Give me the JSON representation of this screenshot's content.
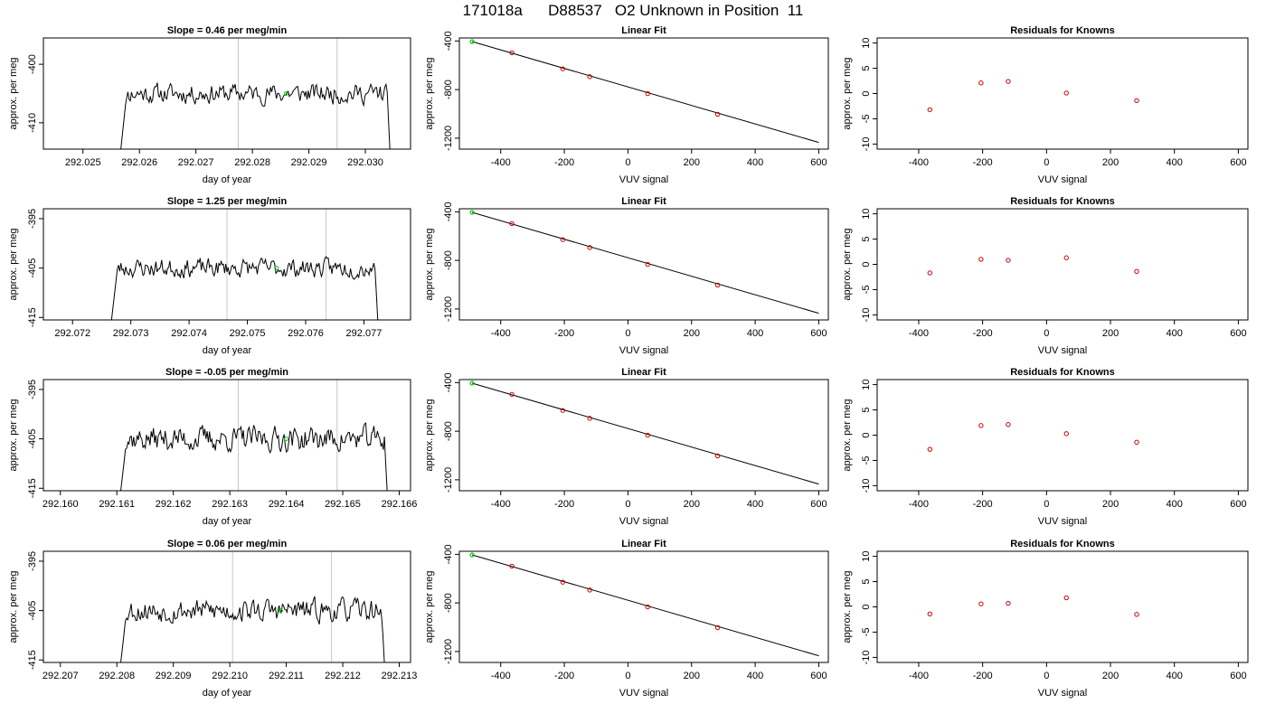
{
  "title": "171018a      D88537   O2 Unknown in Position  11",
  "colors": {
    "trace": "#000000",
    "unknown_point": "#00cc00",
    "known_point": "#cc0000",
    "vline": "#c8c8c8"
  },
  "chart_data": [
    {
      "type": "line",
      "panel": "timeseries",
      "row": 1,
      "title": "Slope =  0.46  per meg/min",
      "xlabel": "day of year",
      "ylabel": "approx. per meg",
      "xlim": [
        292.0243,
        292.0308
      ],
      "ylim": [
        -414.5,
        -395.5
      ],
      "xticks": [
        292.025,
        292.026,
        292.027,
        292.028,
        292.029,
        292.03
      ],
      "xtick_labels": [
        "292.025",
        "292.026",
        "292.027",
        "292.028",
        "292.029",
        "292.030"
      ],
      "yticks": [
        -400,
        -410
      ],
      "ytick_labels": [
        "-400",
        "-410"
      ],
      "trace_start": 292.02565,
      "trace_end": 292.03045,
      "trace_level": -405.0,
      "trace_noise": 1.6,
      "trace_seed": 11,
      "vlines": [
        292.02775,
        292.0295
      ],
      "unknown_point": {
        "x": 292.0286,
        "y": -405.0
      }
    },
    {
      "type": "line",
      "panel": "timeseries",
      "row": 2,
      "title": "Slope =  1.25  per meg/min",
      "xlabel": "day of year",
      "ylabel": "approx. per meg",
      "xlim": [
        292.0715,
        292.0778
      ],
      "ylim": [
        -415.5,
        -393
      ],
      "xticks": [
        292.072,
        292.073,
        292.074,
        292.075,
        292.076,
        292.077
      ],
      "xtick_labels": [
        "292.072",
        "292.073",
        "292.074",
        "292.075",
        "292.076",
        "292.077"
      ],
      "yticks": [
        -395,
        -405,
        -415
      ],
      "ytick_labels": [
        "-395",
        "-405",
        "-415"
      ],
      "trace_start": 292.07265,
      "trace_end": 292.07725,
      "trace_level": -405.0,
      "trace_noise": 1.8,
      "trace_seed": 23,
      "vlines": [
        292.07465,
        292.07635
      ],
      "unknown_point": {
        "x": 292.0755,
        "y": -405.0
      }
    },
    {
      "type": "line",
      "panel": "timeseries",
      "row": 3,
      "title": "Slope =  -0.05  per meg/min",
      "xlabel": "day of year",
      "ylabel": "approx. per meg",
      "xlim": [
        292.1597,
        292.1662
      ],
      "ylim": [
        -415.5,
        -393
      ],
      "xticks": [
        292.16,
        292.161,
        292.162,
        292.163,
        292.164,
        292.165,
        292.166
      ],
      "xtick_labels": [
        "292.160",
        "292.161",
        "292.162",
        "292.163",
        "292.164",
        "292.165",
        "292.166"
      ],
      "yticks": [
        -395,
        -405,
        -415
      ],
      "ytick_labels": [
        "-395",
        "-405",
        "-415"
      ],
      "trace_start": 292.16105,
      "trace_end": 292.1658,
      "trace_level": -405.0,
      "trace_noise": 2.4,
      "trace_seed": 37,
      "vlines": [
        292.16315,
        292.1649
      ],
      "unknown_point": {
        "x": 292.164,
        "y": -405.0
      }
    },
    {
      "type": "line",
      "panel": "timeseries",
      "row": 4,
      "title": "Slope =  0.06  per meg/min",
      "xlabel": "day of year",
      "ylabel": "approx. per meg",
      "xlim": [
        292.2067,
        292.2132
      ],
      "ylim": [
        -415.5,
        -393
      ],
      "xticks": [
        292.207,
        292.208,
        292.209,
        292.21,
        292.211,
        292.212,
        292.213
      ],
      "xtick_labels": [
        "292.207",
        "292.208",
        "292.209",
        "292.210",
        "292.211",
        "292.212",
        "292.213"
      ],
      "yticks": [
        -395,
        -405,
        -415
      ],
      "ytick_labels": [
        "-395",
        "-405",
        "-415"
      ],
      "trace_start": 292.20805,
      "trace_end": 292.21275,
      "trace_level": -405.0,
      "trace_noise": 2.2,
      "trace_seed": 53,
      "vlines": [
        292.21005,
        292.2118
      ],
      "unknown_point": {
        "x": 292.2109,
        "y": -405.0
      }
    },
    {
      "type": "scatter",
      "panel": "fit",
      "row": 1,
      "title": "Linear Fit",
      "xlabel": "VUV signal",
      "ylabel": "approx. per meg",
      "xlim": [
        -530,
        630
      ],
      "ylim": [
        -1290,
        -375
      ],
      "xticks": [
        -400,
        -200,
        0,
        200,
        400,
        600
      ],
      "xtick_labels": [
        "-400",
        "-200",
        "0",
        "200",
        "400",
        "600"
      ],
      "yticks": [
        -400,
        -800,
        -1200
      ],
      "ytick_labels": [
        "-400",
        "-800",
        "-1200"
      ],
      "fit_line": {
        "x": [
          -490,
          600
        ],
        "y": [
          -405,
          -1235
        ]
      },
      "knowns": {
        "x": [
          -365,
          -205,
          -120,
          62,
          282
        ],
        "y": [
          -497,
          -629,
          -694,
          -833,
          -1003
        ]
      },
      "unknown": {
        "x": [
          -490
        ],
        "y": [
          -405
        ]
      }
    },
    {
      "type": "scatter",
      "panel": "fit",
      "row": 2,
      "title": "Linear Fit",
      "xlabel": "VUV signal",
      "ylabel": "approx. per meg",
      "xlim": [
        -530,
        630
      ],
      "ylim": [
        -1290,
        -375
      ],
      "xticks": [
        -400,
        -200,
        0,
        200,
        400,
        600
      ],
      "xtick_labels": [
        "-400",
        "-200",
        "0",
        "200",
        "400",
        "600"
      ],
      "yticks": [
        -400,
        -800,
        -1200
      ],
      "ytick_labels": [
        "-400",
        "-800",
        "-1200"
      ],
      "fit_line": {
        "x": [
          -490,
          600
        ],
        "y": [
          -405,
          -1235
        ]
      },
      "knowns": {
        "x": [
          -365,
          -205,
          -120,
          62,
          282
        ],
        "y": [
          -497,
          -629,
          -694,
          -833,
          -1003
        ]
      },
      "unknown": {
        "x": [
          -490
        ],
        "y": [
          -405
        ]
      }
    },
    {
      "type": "scatter",
      "panel": "fit",
      "row": 3,
      "title": "Linear Fit",
      "xlabel": "VUV signal",
      "ylabel": "approx. per meg",
      "xlim": [
        -530,
        630
      ],
      "ylim": [
        -1290,
        -375
      ],
      "xticks": [
        -400,
        -200,
        0,
        200,
        400,
        600
      ],
      "xtick_labels": [
        "-400",
        "-200",
        "0",
        "200",
        "400",
        "600"
      ],
      "yticks": [
        -400,
        -800,
        -1200
      ],
      "ytick_labels": [
        "-400",
        "-800",
        "-1200"
      ],
      "fit_line": {
        "x": [
          -490,
          600
        ],
        "y": [
          -405,
          -1235
        ]
      },
      "knowns": {
        "x": [
          -365,
          -205,
          -120,
          62,
          282
        ],
        "y": [
          -497,
          -629,
          -694,
          -833,
          -1003
        ]
      },
      "unknown": {
        "x": [
          -490
        ],
        "y": [
          -405
        ]
      }
    },
    {
      "type": "scatter",
      "panel": "fit",
      "row": 4,
      "title": "Linear Fit",
      "xlabel": "VUV signal",
      "ylabel": "approx. per meg",
      "xlim": [
        -530,
        630
      ],
      "ylim": [
        -1290,
        -375
      ],
      "xticks": [
        -400,
        -200,
        0,
        200,
        400,
        600
      ],
      "xtick_labels": [
        "-400",
        "-200",
        "0",
        "200",
        "400",
        "600"
      ],
      "yticks": [
        -400,
        -800,
        -1200
      ],
      "ytick_labels": [
        "-400",
        "-800",
        "-1200"
      ],
      "fit_line": {
        "x": [
          -490,
          600
        ],
        "y": [
          -405,
          -1235
        ]
      },
      "knowns": {
        "x": [
          -365,
          -205,
          -120,
          62,
          282
        ],
        "y": [
          -497,
          -629,
          -694,
          -833,
          -1003
        ]
      },
      "unknown": {
        "x": [
          -490
        ],
        "y": [
          -405
        ]
      }
    },
    {
      "type": "scatter",
      "panel": "residuals",
      "row": 1,
      "title": "Residuals for Knowns",
      "xlabel": "VUV signal",
      "ylabel": "approx. per meg",
      "xlim": [
        -530,
        630
      ],
      "ylim": [
        -11,
        11
      ],
      "xticks": [
        -400,
        -200,
        0,
        200,
        400,
        600
      ],
      "xtick_labels": [
        "-400",
        "-200",
        "0",
        "200",
        "400",
        "600"
      ],
      "yticks": [
        10,
        5,
        0,
        -5,
        -10
      ],
      "ytick_labels": [
        "10",
        "5",
        "0",
        "-5",
        "-10"
      ],
      "x": [
        -365,
        -205,
        -120,
        62,
        282
      ],
      "y": [
        -3.2,
        2.1,
        2.4,
        0.1,
        -1.4
      ]
    },
    {
      "type": "scatter",
      "panel": "residuals",
      "row": 2,
      "title": "Residuals for Knowns",
      "xlabel": "VUV signal",
      "ylabel": "approx. per meg",
      "xlim": [
        -530,
        630
      ],
      "ylim": [
        -11,
        11
      ],
      "xticks": [
        -400,
        -200,
        0,
        200,
        400,
        600
      ],
      "xtick_labels": [
        "-400",
        "-200",
        "0",
        "200",
        "400",
        "600"
      ],
      "yticks": [
        10,
        5,
        0,
        -5,
        -10
      ],
      "ytick_labels": [
        "10",
        "5",
        "0",
        "-5",
        "-10"
      ],
      "x": [
        -365,
        -205,
        -120,
        62,
        282
      ],
      "y": [
        -1.7,
        1.0,
        0.8,
        1.3,
        -1.4
      ]
    },
    {
      "type": "scatter",
      "panel": "residuals",
      "row": 3,
      "title": "Residuals for Knowns",
      "xlabel": "VUV signal",
      "ylabel": "approx. per meg",
      "xlim": [
        -530,
        630
      ],
      "ylim": [
        -11,
        11
      ],
      "xticks": [
        -400,
        -200,
        0,
        200,
        400,
        600
      ],
      "xtick_labels": [
        "-400",
        "-200",
        "0",
        "200",
        "400",
        "600"
      ],
      "yticks": [
        10,
        5,
        0,
        -5,
        -10
      ],
      "ytick_labels": [
        "10",
        "5",
        "0",
        "-5",
        "-10"
      ],
      "x": [
        -365,
        -205,
        -120,
        62,
        282
      ],
      "y": [
        -2.8,
        1.9,
        2.1,
        0.3,
        -1.4
      ]
    },
    {
      "type": "scatter",
      "panel": "residuals",
      "row": 4,
      "title": "Residuals for Knowns",
      "xlabel": "VUV signal",
      "ylabel": "approx. per meg",
      "xlim": [
        -530,
        630
      ],
      "ylim": [
        -11,
        11
      ],
      "xticks": [
        -400,
        -200,
        0,
        200,
        400,
        600
      ],
      "xtick_labels": [
        "-400",
        "-200",
        "0",
        "200",
        "400",
        "600"
      ],
      "yticks": [
        10,
        5,
        0,
        -5,
        -10
      ],
      "ytick_labels": [
        "10",
        "5",
        "0",
        "-5",
        "-10"
      ],
      "x": [
        -365,
        -205,
        -120,
        62,
        282
      ],
      "y": [
        -1.4,
        0.6,
        0.7,
        1.8,
        -1.5
      ]
    }
  ]
}
